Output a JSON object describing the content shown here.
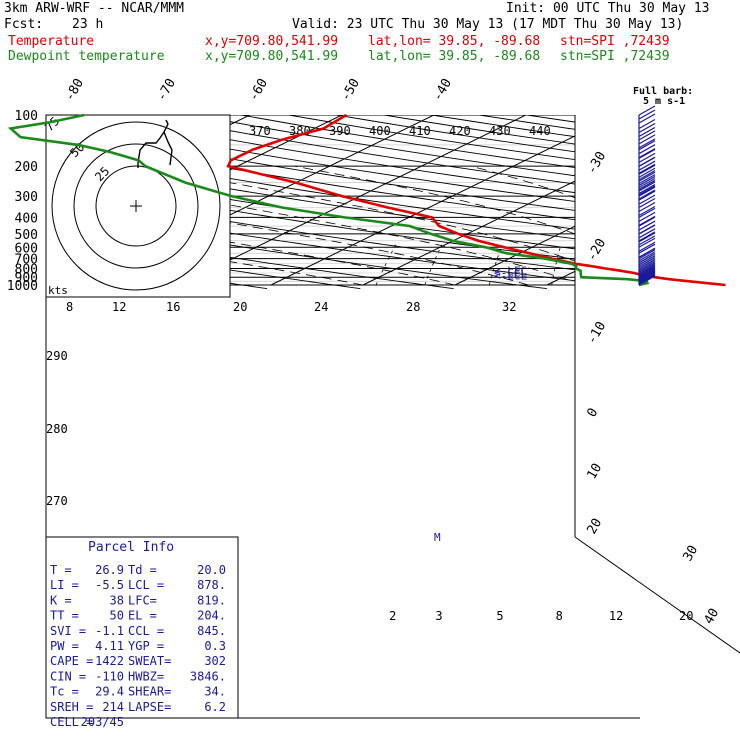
{
  "header": {
    "title": "3km ARW-WRF -- NCAR/MMM",
    "init": "Init: 00 UTC Thu 30 May 13",
    "fcst_label": "Fcst:",
    "fcst_value": "23 h",
    "valid": "Valid: 23 UTC Thu 30 May 13 (17 MDT Thu 30 May 13)",
    "temp_label": "Temperature",
    "dewp_label": "Dewpoint temperature",
    "xy": "x,y=709.80,541.99",
    "latlon": "lat,lon= 39.85, -89.68",
    "stn": "stn=SPI ,72439"
  },
  "colors": {
    "temperature": "#e00000",
    "dewpoint": "#1a8a1a",
    "barb": "#1a1a9a",
    "grid": "#000000"
  },
  "chart_data": {
    "type": "line",
    "subtype": "skew-T log-P sounding",
    "y_axis": {
      "label": "pressure (hPa)",
      "scale": "log",
      "ticks": [
        100,
        200,
        300,
        400,
        500,
        600,
        700,
        800,
        900,
        1000
      ]
    },
    "isotherm_labels": [
      "-80",
      "-70",
      "-60",
      "-50",
      "-40",
      "-30",
      "-20",
      "-10",
      "0",
      "10",
      "20",
      "30",
      "40"
    ],
    "theta_labels": [
      "370",
      "380",
      "390",
      "400",
      "410",
      "420",
      "430",
      "440"
    ],
    "mixing_ratio_labels": [
      "2",
      "3",
      "5",
      "8",
      "12",
      "20"
    ],
    "thetae_labels": [
      "290",
      "280",
      "270"
    ],
    "barb_legend": {
      "title": "Full barb:",
      "value": "5 m s-1"
    },
    "series": [
      {
        "name": "Temperature",
        "values_p_t": [
          [
            1000,
            29.4
          ],
          [
            975,
            26.9
          ],
          [
            950,
            24.5
          ],
          [
            925,
            22.0
          ],
          [
            900,
            20.0
          ],
          [
            875,
            18.2
          ],
          [
            850,
            16.8
          ],
          [
            825,
            14.9
          ],
          [
            800,
            12.7
          ],
          [
            775,
            10.7
          ],
          [
            750,
            8.4
          ],
          [
            700,
            4.7
          ],
          [
            650,
            1.0
          ],
          [
            600,
            -3.0
          ],
          [
            550,
            -7.2
          ],
          [
            500,
            -11.0
          ],
          [
            450,
            -14.8
          ],
          [
            400,
            -17.5
          ],
          [
            350,
            -24.5
          ],
          [
            300,
            -32.0
          ],
          [
            250,
            -40.0
          ],
          [
            200,
            -51.0
          ],
          [
            185,
            -52.0
          ],
          [
            160,
            -52.0
          ],
          [
            140,
            -51.0
          ],
          [
            120,
            -49.0
          ],
          [
            100,
            -49.5
          ]
        ]
      },
      {
        "name": "Dewpoint temperature",
        "values_p_t": [
          [
            1000,
            20.0
          ],
          [
            975,
            20.5
          ],
          [
            950,
            20.0
          ],
          [
            925,
            17.5
          ],
          [
            900,
            12.0
          ],
          [
            875,
            11.5
          ],
          [
            850,
            11.0
          ],
          [
            825,
            10.5
          ],
          [
            800,
            9.5
          ],
          [
            775,
            9.0
          ],
          [
            750,
            8.0
          ],
          [
            700,
            4.0
          ],
          [
            650,
            -1.5
          ],
          [
            600,
            -5.0
          ],
          [
            550,
            -10.0
          ],
          [
            500,
            -14.0
          ],
          [
            450,
            -18.0
          ],
          [
            400,
            -27.0
          ],
          [
            350,
            -36.0
          ],
          [
            300,
            -44.0
          ],
          [
            250,
            -52.0
          ],
          [
            200,
            -60.0
          ],
          [
            185,
            -62.0
          ],
          [
            165,
            -67.0
          ],
          [
            150,
            -72.0
          ],
          [
            135,
            -80.0
          ],
          [
            120,
            -83.0
          ],
          [
            110,
            -80.0
          ],
          [
            100,
            -78.0
          ]
        ]
      }
    ],
    "markers": [
      {
        "label": "<-LFC",
        "p": 819
      },
      {
        "label": "<-CCL",
        "p": 845
      },
      {
        "label": "<-LCL",
        "p": 878
      }
    ],
    "wind_barbs_p": [
      1000,
      990,
      980,
      970,
      960,
      950,
      940,
      930,
      920,
      900,
      880,
      860,
      840,
      820,
      800,
      780,
      760,
      740,
      720,
      700,
      650,
      600,
      550,
      500,
      450,
      400,
      350,
      300,
      280,
      260,
      240,
      220,
      200,
      180,
      160,
      140,
      120,
      100
    ]
  },
  "hodograph": {
    "units": "kts",
    "ring_labels": [
      "25",
      "50",
      "75"
    ],
    "speed_labels": [
      "8",
      "12",
      "16",
      "20",
      "24",
      "28",
      "32"
    ]
  },
  "parcel": {
    "title": "Parcel Info",
    "rows": [
      [
        "T  =",
        "26.9",
        "Td =",
        "20.0"
      ],
      [
        "LI =",
        "-5.5",
        "LCL =",
        "878."
      ],
      [
        "K  =",
        "38",
        "LFC=",
        "819."
      ],
      [
        "TT =",
        "50",
        "EL =",
        "204."
      ],
      [
        "SVI =",
        "-1.1",
        "CCL =",
        "845."
      ],
      [
        "PW =",
        "4.11",
        "YGP =",
        "0.3"
      ],
      [
        "CAPE =",
        "1422",
        "SWEAT=",
        "302"
      ],
      [
        "CIN =",
        "-110",
        "HWBZ=",
        "3846."
      ],
      [
        "Tc =",
        "29.4",
        "SHEAR=",
        "34."
      ],
      [
        "SREH =",
        "214",
        "LAPSE=",
        "6.2"
      ],
      [
        "CELL =",
        "203/45",
        "",
        ""
      ]
    ]
  }
}
